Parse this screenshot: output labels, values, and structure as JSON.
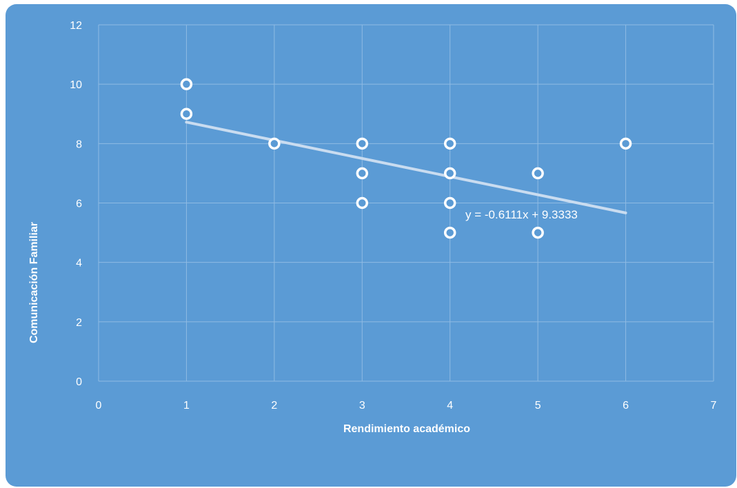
{
  "chart_data": {
    "type": "scatter",
    "title": "",
    "xlabel": "Rendimiento académico",
    "ylabel": "Comunicación Familiar",
    "xlim": [
      0,
      7
    ],
    "ylim": [
      0,
      12
    ],
    "xticks": [
      0,
      1,
      2,
      3,
      4,
      5,
      6,
      7
    ],
    "yticks": [
      0,
      2,
      4,
      6,
      8,
      10,
      12
    ],
    "grid": true,
    "points": [
      {
        "x": 1,
        "y": 10
      },
      {
        "x": 1,
        "y": 9
      },
      {
        "x": 2,
        "y": 8
      },
      {
        "x": 3,
        "y": 8
      },
      {
        "x": 3,
        "y": 7
      },
      {
        "x": 3,
        "y": 6
      },
      {
        "x": 4,
        "y": 8
      },
      {
        "x": 4,
        "y": 7
      },
      {
        "x": 4,
        "y": 6
      },
      {
        "x": 4,
        "y": 5
      },
      {
        "x": 5,
        "y": 7
      },
      {
        "x": 5,
        "y": 5
      },
      {
        "x": 6,
        "y": 8
      }
    ],
    "trendline": {
      "type": "linear",
      "slope": -0.6111,
      "intercept": 9.3333,
      "x_range": [
        1,
        6
      ],
      "equation_label": "y = -0.6111x + 9.3333"
    },
    "colors": {
      "background": "#5b9bd5",
      "marker": "#ffffff",
      "trendline": "#c9dcf0",
      "grid": "#8fbbe3"
    }
  }
}
